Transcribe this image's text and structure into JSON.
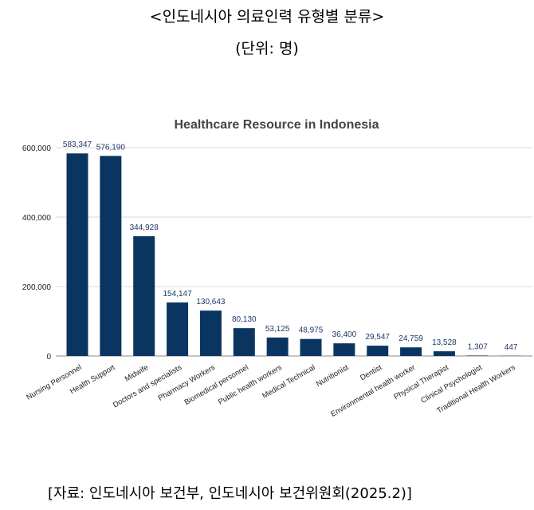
{
  "header": {
    "title": "<인도네시아 의료인력 유형별 분류>",
    "unit": "(단위: 명)"
  },
  "footer": {
    "source": "[자료: 인도네시아 보건부, 인도네시아 보건위원회(2025.2)]"
  },
  "chart_data": {
    "type": "bar",
    "title": "Healthcare Resource in Indonesia",
    "xlabel": "",
    "ylabel": "",
    "ylim": [
      0,
      600000
    ],
    "yticks": [
      0,
      200000,
      400000,
      600000
    ],
    "ytick_labels": [
      "0",
      "200,000",
      "400,000",
      "600,000"
    ],
    "grid": true,
    "bar_color": "#0b3561",
    "label_color": "#1f3864",
    "categories": [
      "Nursing Personnel",
      "Health Support",
      "Midwife",
      "Doctors and specialists",
      "Pharmacy Workers",
      "Biomedical personnel",
      "Public health workers",
      "Medical Technical",
      "Nutritionist",
      "Dentist",
      "Environmental health worker",
      "Physical Therapist",
      "Clinical Psychologist",
      "Traditional Health Workers"
    ],
    "values": [
      583347,
      576190,
      344928,
      154147,
      130643,
      80130,
      53125,
      48975,
      36400,
      29547,
      24759,
      13528,
      1307,
      447
    ],
    "data_labels": [
      "583,347",
      "576,190",
      "344,928",
      "154,147",
      "130,643",
      "80,130",
      "53,125",
      "48,975",
      "36,400",
      "29,547",
      "24,759",
      "13,528",
      "1,307",
      "447"
    ]
  }
}
